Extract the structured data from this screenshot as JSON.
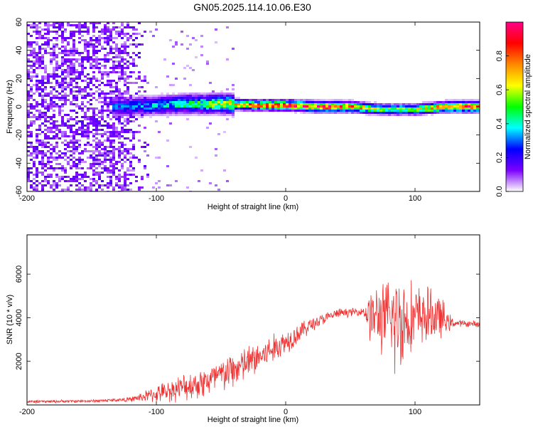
{
  "title": "GN05.2025.114.10.06.E30",
  "chart_data": [
    {
      "type": "heatmap",
      "xlabel": "Height of straight line (km)",
      "ylabel": "Frequency (Hz)",
      "xlim": [
        -200,
        150
      ],
      "ylim": [
        -60,
        60
      ],
      "x_ticks": [
        -200,
        -100,
        0,
        100
      ],
      "y_ticks": [
        -60,
        -40,
        -20,
        0,
        20,
        40,
        60
      ],
      "colorbar": {
        "label": "Normalized spectral amplitude",
        "range": [
          0,
          1
        ],
        "ticks": [
          "0.0",
          "0.2",
          "0.4",
          "0.6",
          "0.8"
        ],
        "colors": [
          "#ffffff",
          "#7b00ff",
          "#0000ff",
          "#00ffff",
          "#00ff00",
          "#ffff00",
          "#ff8800",
          "#ff0000",
          "#ff0088"
        ]
      },
      "ridge": {
        "x": [
          -125,
          -100,
          -75,
          -50,
          -25,
          0,
          25,
          50,
          75,
          100,
          125,
          150
        ],
        "freq": [
          0,
          1,
          2,
          2,
          1,
          1,
          0,
          0,
          -2,
          -2,
          0,
          0
        ],
        "amplitude": [
          0.3,
          0.35,
          0.45,
          0.6,
          0.8,
          0.85,
          0.9,
          0.8,
          0.55,
          0.6,
          0.8,
          0.95
        ]
      },
      "noise_region": {
        "x_from": -200,
        "x_to": -105,
        "amplitude": 0.1
      }
    },
    {
      "type": "line",
      "xlabel": "Height of straight line (km)",
      "ylabel": "SNR (10 * v/v)",
      "xlim": [
        -200,
        150
      ],
      "ylim": [
        0,
        7800
      ],
      "x_ticks": [
        -200,
        -100,
        0,
        100
      ],
      "y_ticks": [
        2000,
        4000,
        6000
      ],
      "color": "#ee3333",
      "envelope": {
        "x": [
          -200,
          -150,
          -120,
          -100,
          -80,
          -60,
          -40,
          -20,
          0,
          20,
          40,
          60,
          65,
          80,
          85,
          90,
          100,
          110,
          120,
          125,
          130,
          150
        ],
        "mean": [
          150,
          180,
          250,
          500,
          800,
          1100,
          1600,
          2200,
          2900,
          3700,
          4200,
          4300,
          4100,
          3900,
          3800,
          3900,
          4000,
          4100,
          4000,
          3800,
          3750,
          3700
        ],
        "amplitude": [
          80,
          80,
          120,
          450,
          700,
          900,
          1000,
          900,
          700,
          400,
          250,
          200,
          1400,
          2200,
          3200,
          2500,
          1800,
          1500,
          1200,
          600,
          200,
          150
        ]
      }
    }
  ]
}
